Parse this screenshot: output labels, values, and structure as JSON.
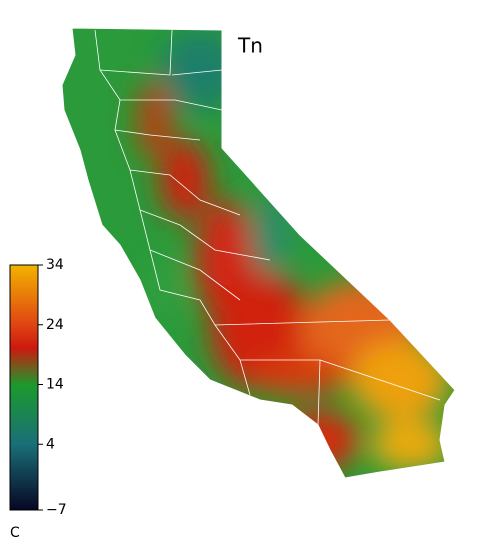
{
  "map": {
    "title": "Tn",
    "colorbar": {
      "unit": "C",
      "lim": [
        -7,
        34
      ],
      "ticks": [
        34,
        24,
        14,
        4,
        {
          "value": -7,
          "label": "−7"
        }
      ]
    }
  }
}
